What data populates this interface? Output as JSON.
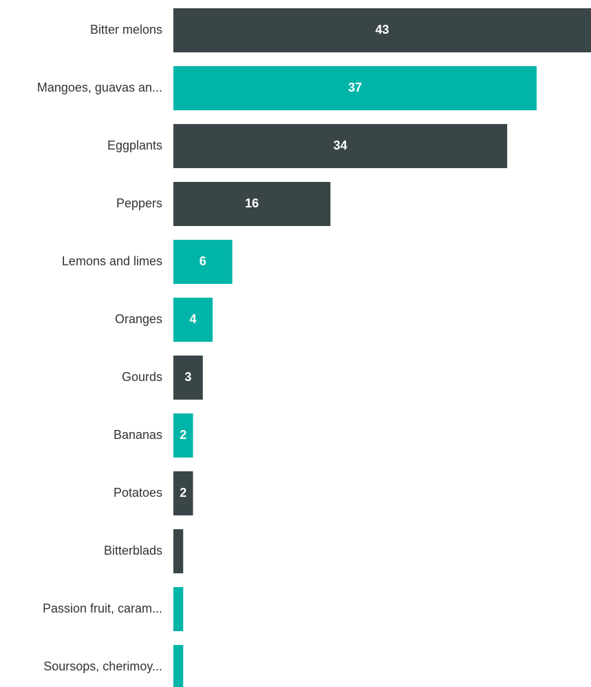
{
  "chart_data": {
    "type": "bar",
    "orientation": "horizontal",
    "categories": [
      "Bitter melons",
      "Mangoes, guavas an...",
      "Eggplants",
      "Peppers",
      "Lemons and limes",
      "Oranges",
      "Gourds",
      "Bananas",
      "Potatoes",
      "Bitterblads",
      "Passion fruit, caram...",
      "Soursops, cherimoy..."
    ],
    "values": [
      43,
      37,
      34,
      16,
      6,
      4,
      3,
      2,
      2,
      1,
      1,
      1
    ],
    "colors": [
      "#3a4548",
      "#00b5a8",
      "#3a4548",
      "#3a4548",
      "#00b5a8",
      "#00b5a8",
      "#3a4548",
      "#00b5a8",
      "#3a4548",
      "#3a4548",
      "#00b5a8",
      "#00b5a8"
    ]
  }
}
